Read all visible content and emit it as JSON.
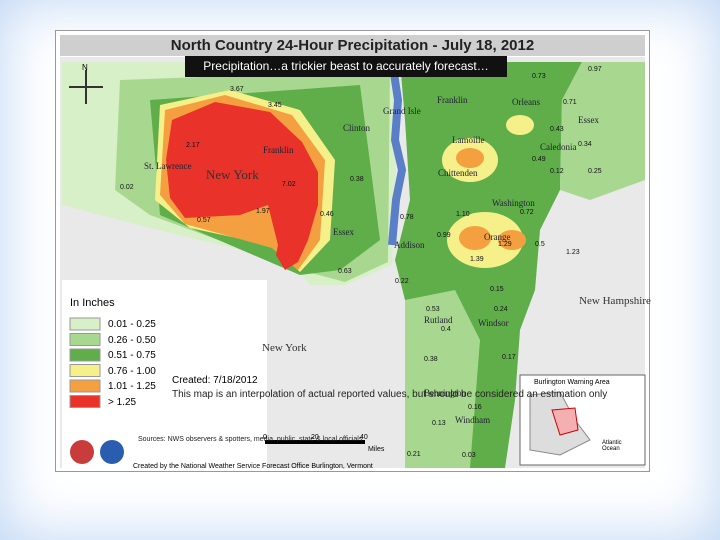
{
  "header": {
    "title": "North Country 24-Hour Precipitation - July 18, 2012"
  },
  "banner": "Precipitation…a trickier beast to accurately forecast…",
  "compass": "N",
  "legend": {
    "title": "In Inches",
    "items": [
      {
        "label": "0.01 - 0.25",
        "color": "#d8f0c8"
      },
      {
        "label": "0.26 - 0.50",
        "color": "#a8d890"
      },
      {
        "label": "0.51 - 0.75",
        "color": "#5fae4a"
      },
      {
        "label": "0.76 - 1.00",
        "color": "#f5f08a"
      },
      {
        "label": "1.01 - 1.25",
        "color": "#f5a040"
      },
      {
        "label": "> 1.25",
        "color": "#e8322a"
      }
    ]
  },
  "created": "Created: 7/18/2012",
  "note": "This map is an interpolation of actual reported values, but should be considered an estimation only",
  "sources": "Sources: NWS observers & spotters, media, public, state & local officials",
  "credit": "Created by the National Weather Service Forecast Office Burlington, Vermont",
  "scale": {
    "ticks": [
      "0",
      "20",
      "40"
    ],
    "unit": "Miles"
  },
  "places": [
    "Franklin",
    "Clinton",
    "Grand Isle",
    "St. Lawrence",
    "Franklin",
    "New York",
    "Essex",
    "Orleans",
    "Essex",
    "Lamoille",
    "Caledonia",
    "Chittenden",
    "Washington",
    "Addison",
    "Orange",
    "Rutland",
    "Windsor",
    "New Hampshire",
    "New York",
    "Bennington",
    "Windham"
  ],
  "readings": [
    "3.67",
    "3.45",
    "2.17",
    "7.02",
    "1.97",
    "0.57",
    "0.02",
    "0.46",
    "0.38",
    "0.63",
    "0.22",
    "0.78",
    "0.99",
    "1.10",
    "1.29",
    "1.39",
    "0.15",
    "0.24",
    "0.73",
    "0.97",
    "0.71",
    "0.43",
    "0.34",
    "0.25",
    "0.12",
    "0.49",
    "0.72",
    "0.5",
    "1.23",
    "0.53",
    "0.4",
    "0.38",
    "0.17",
    "0.16",
    "0.21",
    "0.03",
    "0.13"
  ],
  "inset": {
    "title": "Burlington Warning Area",
    "label": "Atlantic Ocean"
  }
}
